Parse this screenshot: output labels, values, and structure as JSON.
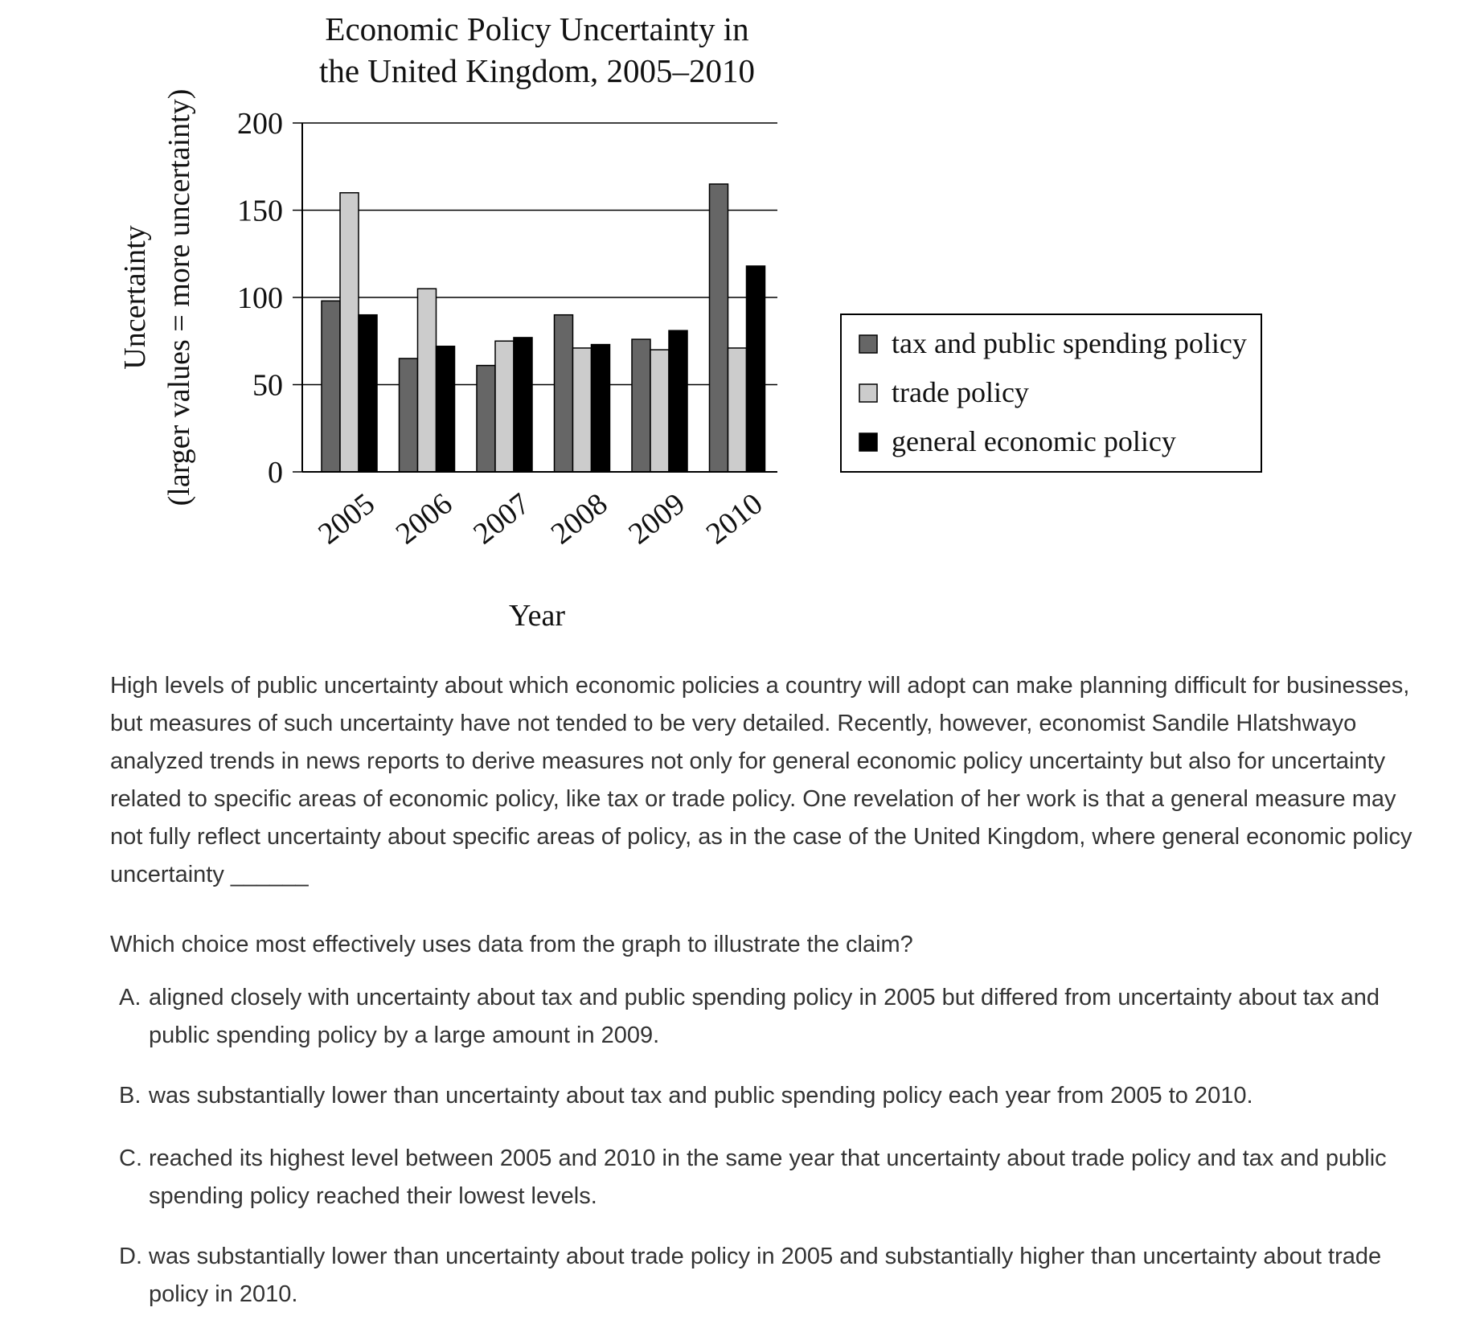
{
  "chart_data": {
    "type": "bar",
    "title_line1": "Economic Policy Uncertainty in",
    "title_line2": "the United Kingdom, 2005–2010",
    "xlabel": "Year",
    "ylabel_line1": "Uncertainty",
    "ylabel_line2": "(larger values = more uncertainty)",
    "categories": [
      "2005",
      "2006",
      "2007",
      "2008",
      "2009",
      "2010"
    ],
    "ylim": [
      0,
      200
    ],
    "yticks": [
      "0",
      "50",
      "100",
      "150",
      "200"
    ],
    "grid": true,
    "legend_position": "right",
    "series": [
      {
        "name": "tax and public spending policy",
        "color": "#666666",
        "values": [
          98,
          65,
          61,
          90,
          76,
          165
        ]
      },
      {
        "name": "trade policy",
        "color": "#cccccc",
        "values": [
          160,
          105,
          75,
          71,
          70,
          71
        ]
      },
      {
        "name": "general economic policy",
        "color": "#000000",
        "values": [
          90,
          72,
          77,
          73,
          81,
          118
        ]
      }
    ]
  },
  "question": {
    "passage": "High levels of public uncertainty about which economic policies a country will adopt can make planning difficult for businesses, but measures of such uncertainty have not tended to be very detailed. Recently, however, economist Sandile Hlatshwayo analyzed trends in news reports to derive measures not only for general economic policy uncertainty but also for uncertainty related to specific areas of economic policy, like tax or trade policy. One revelation of her work is that a general measure may not fully reflect uncertainty about specific areas of policy, as in the case of the United Kingdom, where general economic policy uncertainty ______",
    "prompt": "Which choice most effectively uses data from the graph to illustrate the claim?",
    "choices": [
      {
        "letter": "A.",
        "text": "aligned closely with uncertainty about tax and public spending policy in 2005 but differed from uncertainty about tax and public spending policy by a large amount in 2009."
      },
      {
        "letter": "B.",
        "text": "was substantially lower than uncertainty about tax and public spending policy each year from 2005 to 2010."
      },
      {
        "letter": "C.",
        "text": "reached its highest level between 2005 and 2010 in the same year that uncertainty about trade policy and tax and public spending policy reached their lowest levels."
      },
      {
        "letter": "D.",
        "text": "was substantially lower than uncertainty about trade policy in 2005 and substantially higher than uncertainty about trade policy in 2010."
      }
    ]
  }
}
